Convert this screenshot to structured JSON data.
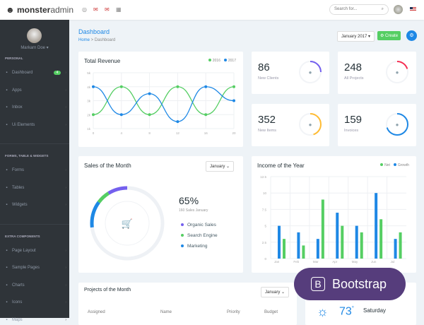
{
  "brand": {
    "part1": "monster",
    "part2": "admin"
  },
  "topbar": {
    "search_placeholder": "Search for..."
  },
  "user": {
    "name": "Markarn Doe"
  },
  "sidebar": {
    "sections": [
      {
        "title": "PERSONAL",
        "items": [
          {
            "label": "Dashboard",
            "icon": "gauge-icon",
            "badge": "4"
          },
          {
            "label": "Apps",
            "icon": "apps-icon"
          },
          {
            "label": "Inbox",
            "icon": "inbox-icon"
          },
          {
            "label": "Ui Elements",
            "icon": "ui-icon"
          }
        ]
      },
      {
        "title": "FORMS, TABLE & WIDGETS",
        "items": [
          {
            "label": "Forms",
            "icon": "file-icon"
          },
          {
            "label": "Tables",
            "icon": "table-icon"
          },
          {
            "label": "Widgets",
            "icon": "widgets-icon"
          }
        ]
      },
      {
        "title": "EXTRA COMPONENTS",
        "items": [
          {
            "label": "Page Layout",
            "icon": "layout-icon"
          },
          {
            "label": "Sample Pages",
            "icon": "pages-icon"
          },
          {
            "label": "Charts",
            "icon": "chart-icon"
          },
          {
            "label": "Icons",
            "icon": "pen-icon"
          },
          {
            "label": "Maps",
            "icon": "map-pin-icon"
          }
        ]
      }
    ]
  },
  "page": {
    "title": "Dashboard",
    "breadcrumb": [
      "Home",
      "Dashboard"
    ],
    "month_select": "January 2017",
    "create_label": "Create"
  },
  "stats": [
    {
      "value": "86",
      "label": "New Clients",
      "color": "#7460ee",
      "progress": 0.25,
      "icon": "user-icon"
    },
    {
      "value": "248",
      "label": "All Projects",
      "color": "#f62d51",
      "progress": 0.2,
      "icon": "briefcase-icon"
    },
    {
      "value": "352",
      "label": "New Items",
      "color": "#ffbc34",
      "progress": 0.45,
      "icon": "gear-icon"
    },
    {
      "value": "159",
      "label": "Invoices",
      "color": "#1e88e5",
      "progress": 0.7,
      "icon": "invoice-icon"
    }
  ],
  "sales": {
    "title": "Sales of the Month",
    "select": "January",
    "percent": "65%",
    "subtitle": "160 Sales January",
    "legend": [
      {
        "label": "Organic Sales",
        "color": "#7460ee"
      },
      {
        "label": "Search Engine",
        "color": "#55ce63"
      },
      {
        "label": "Marketing",
        "color": "#1e88e5"
      }
    ]
  },
  "projects": {
    "title": "Projects of the Month",
    "select": "January",
    "columns": [
      "Assigned",
      "Name",
      "Priority",
      "Budget"
    ]
  },
  "weather": {
    "temp": "73",
    "unit": "°",
    "day": "Saturday"
  },
  "overlay": {
    "label": "Bootstrap",
    "logo_letter": "B"
  },
  "chart_data": [
    {
      "type": "line",
      "title": "Total Revenue",
      "x": [
        0,
        4,
        8,
        12,
        16,
        20
      ],
      "yticks": [
        "1k",
        "2k",
        "3k",
        "4k",
        "5k"
      ],
      "ylim": [
        1,
        5
      ],
      "grid": true,
      "legend": "top-right",
      "series": [
        {
          "name": "2016",
          "color": "#55ce63",
          "values": [
            2,
            4,
            2,
            4,
            2,
            4
          ]
        },
        {
          "name": "2017",
          "color": "#1e88e5",
          "values": [
            4,
            2,
            3.5,
            1.5,
            4,
            3
          ]
        }
      ]
    },
    {
      "type": "bar",
      "title": "Income of the Year",
      "categories": [
        "Jan",
        "Feb",
        "Mar",
        "Apr",
        "May",
        "Jun",
        "Jul"
      ],
      "yticks": [
        "0",
        "2.5",
        "5",
        "7.5",
        "10",
        "12.5"
      ],
      "ylim": [
        0,
        12.5
      ],
      "grid": true,
      "legend": "top-right",
      "series": [
        {
          "name": "Growth",
          "color": "#1e88e5",
          "values": [
            5,
            4,
            3,
            7,
            5,
            10,
            3
          ]
        },
        {
          "name": "Net",
          "color": "#55ce63",
          "values": [
            3,
            2,
            9,
            5,
            4,
            6,
            4
          ]
        }
      ]
    }
  ]
}
